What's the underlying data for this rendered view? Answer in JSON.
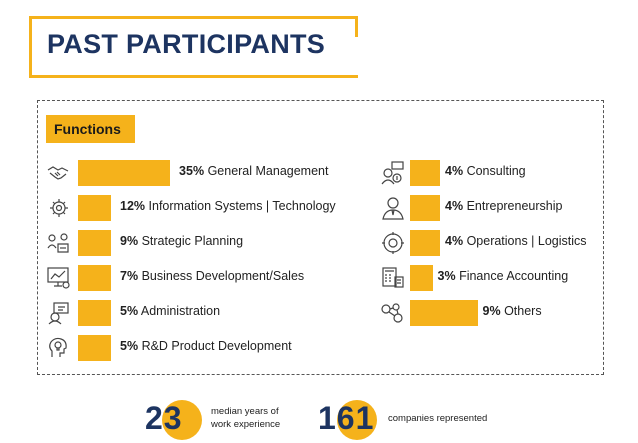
{
  "title": "PAST PARTICIPANTS",
  "section_label": "Functions",
  "functions_left": [
    {
      "pct": "35%",
      "label": "General Management",
      "value": 35,
      "icon": "handshake-icon"
    },
    {
      "pct": "12%",
      "label": "Information Systems | Technology",
      "value": 12,
      "icon": "gear-brain-icon"
    },
    {
      "pct": "9%",
      "label": "Strategic Planning",
      "value": 9,
      "icon": "strategy-icon"
    },
    {
      "pct": "7%",
      "label": "Business Development/Sales",
      "value": 7,
      "icon": "chart-monitor-icon"
    },
    {
      "pct": "5%",
      "label": "Administration",
      "value": 5,
      "icon": "admin-icon"
    },
    {
      "pct": "5%",
      "label": "R&D Product Development",
      "value": 5,
      "icon": "lightbulb-head-icon"
    }
  ],
  "functions_right": [
    {
      "pct": "4%",
      "label": "Consulting",
      "value": 4,
      "icon": "consulting-icon"
    },
    {
      "pct": "4%",
      "label": "Entrepreneurship",
      "value": 4,
      "icon": "person-tie-icon"
    },
    {
      "pct": "4%",
      "label": "Operations | Logistics",
      "value": 4,
      "icon": "gear-cycle-icon"
    },
    {
      "pct": "3%",
      "label": "Finance Accounting",
      "value": 3,
      "icon": "calculator-icon"
    },
    {
      "pct": "9%",
      "label": "Others",
      "value": 9,
      "icon": "network-icon"
    }
  ],
  "stats": [
    {
      "number": "23",
      "line1": "median years of",
      "line2": "work experience"
    },
    {
      "number": "161",
      "line1": "companies represented"
    }
  ],
  "colors": {
    "accent": "#f5b21b",
    "navy": "#1d3461"
  }
}
